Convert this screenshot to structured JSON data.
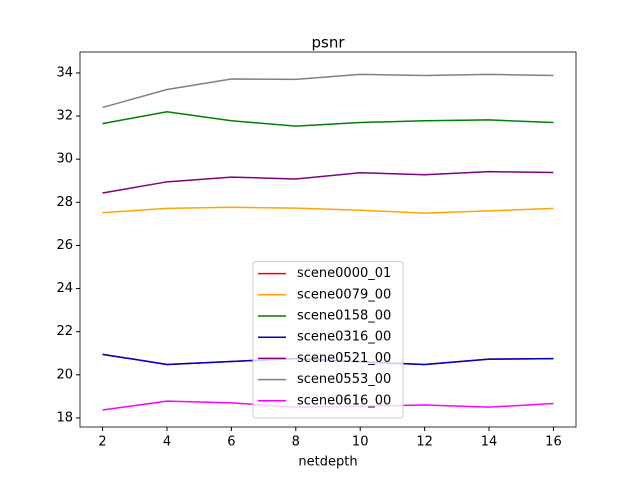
{
  "chart_data": {
    "type": "line",
    "title": "psnr",
    "x_label": "netdepth",
    "x": [
      2,
      4,
      6,
      8,
      10,
      12,
      14,
      16
    ],
    "series": [
      {
        "name": "scene0000_01",
        "color": "#ff0000",
        "values": [
          20.95,
          20.48,
          20.62,
          20.75,
          20.6,
          20.48,
          20.73,
          20.75
        ]
      },
      {
        "name": "scene0079_00",
        "color": "#ffa500",
        "values": [
          27.52,
          27.72,
          27.77,
          27.73,
          27.63,
          27.5,
          27.6,
          27.72
        ]
      },
      {
        "name": "scene0158_00",
        "color": "#008000",
        "values": [
          31.65,
          32.2,
          31.78,
          31.53,
          31.7,
          31.78,
          31.82,
          31.7
        ]
      },
      {
        "name": "scene0316_00",
        "color": "#0000cd",
        "values": [
          20.95,
          20.48,
          20.62,
          20.75,
          20.6,
          20.48,
          20.73,
          20.75
        ]
      },
      {
        "name": "scene0521_00",
        "color": "#800080",
        "values": [
          28.43,
          28.95,
          29.17,
          29.08,
          29.37,
          29.28,
          29.42,
          29.38
        ]
      },
      {
        "name": "scene0553_00",
        "color": "#808080",
        "values": [
          32.4,
          33.23,
          33.72,
          33.7,
          33.93,
          33.88,
          33.93,
          33.88
        ]
      },
      {
        "name": "scene0616_00",
        "color": "#ff00ff",
        "values": [
          18.37,
          18.78,
          18.7,
          18.5,
          18.55,
          18.6,
          18.5,
          18.67
        ]
      }
    ],
    "xlim": [
      1.3,
      16.7
    ],
    "xticks": [
      2,
      4,
      6,
      8,
      10,
      12,
      14,
      16
    ],
    "ylim": [
      17.58,
      34.97
    ],
    "yticks": [
      18,
      20,
      22,
      24,
      26,
      28,
      30,
      32,
      34
    ],
    "legend": "lower center"
  }
}
